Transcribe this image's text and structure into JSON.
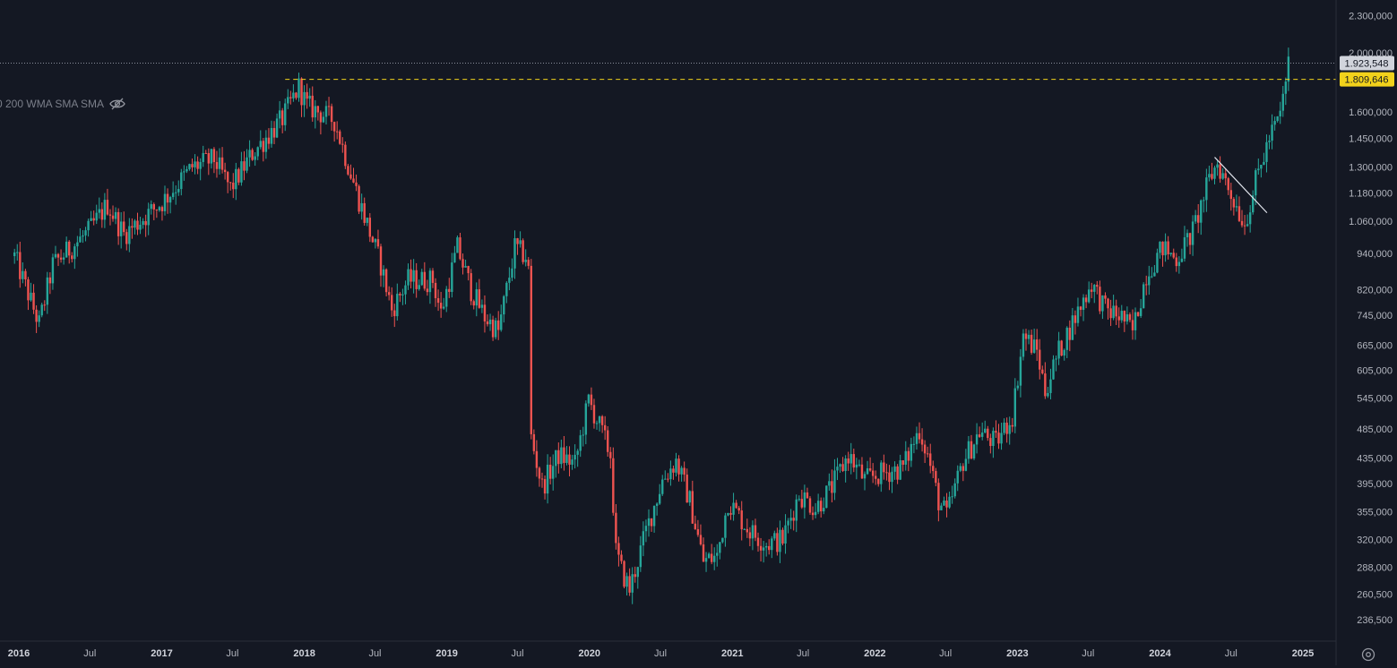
{
  "indicator_legend": {
    "text": "0 200 WMA SMA SMA"
  },
  "icons": {
    "visibility": "eye-off-icon",
    "settings": "gear-icon"
  },
  "colors": {
    "background": "#141823",
    "up": "#26a69a",
    "down": "#ef5350",
    "hline": "#f2d21b",
    "price_label_bg": "#d1d4dc",
    "axis_text": "#b2b5be"
  },
  "chart_data": {
    "type": "candlestick",
    "scale": "log",
    "y_ticks": [
      236500,
      260500,
      288000,
      320000,
      355000,
      395000,
      435000,
      485000,
      545000,
      605000,
      665000,
      745000,
      820000,
      940000,
      1060000,
      1180000,
      1300000,
      1450000,
      1600000,
      2000000,
      2300000
    ],
    "y_tick_labels": [
      "236,500",
      "260,500",
      "288,000",
      "320,000",
      "355,000",
      "395,000",
      "435,000",
      "485,000",
      "545,000",
      "605,000",
      "665,000",
      "745,000",
      "820,000",
      "940,000",
      "1.060,000",
      "1.180,000",
      "1.300,000",
      "1.450,000",
      "1.600,000",
      "2.000,000",
      "2.300,000"
    ],
    "x_ticks": [
      {
        "date": "2016-01-01",
        "label": "2016",
        "bold": true
      },
      {
        "date": "2016-07-01",
        "label": "Jul",
        "bold": false
      },
      {
        "date": "2017-01-01",
        "label": "2017",
        "bold": true
      },
      {
        "date": "2017-07-01",
        "label": "Jul",
        "bold": false
      },
      {
        "date": "2018-01-01",
        "label": "2018",
        "bold": true
      },
      {
        "date": "2018-07-01",
        "label": "Jul",
        "bold": false
      },
      {
        "date": "2019-01-01",
        "label": "2019",
        "bold": true
      },
      {
        "date": "2019-07-01",
        "label": "Jul",
        "bold": false
      },
      {
        "date": "2020-01-01",
        "label": "2020",
        "bold": true
      },
      {
        "date": "2020-07-01",
        "label": "Jul",
        "bold": false
      },
      {
        "date": "2021-01-01",
        "label": "2021",
        "bold": true
      },
      {
        "date": "2021-07-01",
        "label": "Jul",
        "bold": false
      },
      {
        "date": "2022-01-01",
        "label": "2022",
        "bold": true
      },
      {
        "date": "2022-07-01",
        "label": "Jul",
        "bold": false
      },
      {
        "date": "2023-01-01",
        "label": "2023",
        "bold": true
      },
      {
        "date": "2023-07-01",
        "label": "Jul",
        "bold": false
      },
      {
        "date": "2024-01-01",
        "label": "2024",
        "bold": true
      },
      {
        "date": "2024-07-01",
        "label": "Jul",
        "bold": false
      },
      {
        "date": "2025-01-01",
        "label": "2025",
        "bold": true
      }
    ],
    "current_price": {
      "value": 1923548,
      "label": "1.923,548"
    },
    "horizontal_line": {
      "value": 1809646,
      "label": "1.809,646",
      "from_date": "2017-11-13",
      "style": "dashed"
    },
    "trend_line": {
      "from": {
        "date": "2024-05-20",
        "value": 1350000
      },
      "to": {
        "date": "2024-10-01",
        "value": 1095000
      }
    },
    "price_path": [
      {
        "date": "2015-12-21",
        "value": 930000
      },
      {
        "date": "2016-02-22",
        "value": 720000
      },
      {
        "date": "2016-03-28",
        "value": 900000
      },
      {
        "date": "2016-06-27",
        "value": 1020000
      },
      {
        "date": "2016-08-15",
        "value": 1130000
      },
      {
        "date": "2016-09-26",
        "value": 1010000
      },
      {
        "date": "2017-01-02",
        "value": 1140000
      },
      {
        "date": "2017-03-20",
        "value": 1300000
      },
      {
        "date": "2017-05-15",
        "value": 1340000
      },
      {
        "date": "2017-06-26",
        "value": 1200000
      },
      {
        "date": "2017-08-21",
        "value": 1370000
      },
      {
        "date": "2017-11-06",
        "value": 1560000
      },
      {
        "date": "2017-12-18",
        "value": 1760000
      },
      {
        "date": "2018-01-08",
        "value": 1640000
      },
      {
        "date": "2018-03-19",
        "value": 1550000
      },
      {
        "date": "2018-05-21",
        "value": 1150000
      },
      {
        "date": "2018-07-16",
        "value": 900000
      },
      {
        "date": "2018-08-13",
        "value": 760000
      },
      {
        "date": "2018-09-24",
        "value": 850000
      },
      {
        "date": "2018-11-26",
        "value": 850000
      },
      {
        "date": "2018-12-17",
        "value": 750000
      },
      {
        "date": "2019-01-28",
        "value": 960000
      },
      {
        "date": "2019-03-04",
        "value": 820000
      },
      {
        "date": "2019-04-08",
        "value": 740000
      },
      {
        "date": "2019-05-13",
        "value": 700000
      },
      {
        "date": "2019-06-24",
        "value": 960000
      },
      {
        "date": "2019-07-22",
        "value": 930000
      },
      {
        "date": "2019-07-29",
        "value": 880000
      },
      {
        "date": "2019-08-05",
        "value": 470000
      },
      {
        "date": "2019-09-02",
        "value": 390000
      },
      {
        "date": "2019-10-14",
        "value": 440000
      },
      {
        "date": "2019-11-25",
        "value": 425000
      },
      {
        "date": "2019-12-30",
        "value": 540000
      },
      {
        "date": "2020-01-27",
        "value": 490000
      },
      {
        "date": "2020-02-24",
        "value": 440000
      },
      {
        "date": "2020-03-09",
        "value": 305000
      },
      {
        "date": "2020-03-23",
        "value": 285000
      },
      {
        "date": "2020-04-13",
        "value": 265000
      },
      {
        "date": "2020-05-25",
        "value": 330000
      },
      {
        "date": "2020-07-06",
        "value": 400000
      },
      {
        "date": "2020-08-10",
        "value": 430000
      },
      {
        "date": "2020-09-14",
        "value": 370000
      },
      {
        "date": "2020-10-19",
        "value": 295000
      },
      {
        "date": "2020-11-23",
        "value": 300000
      },
      {
        "date": "2020-12-21",
        "value": 370000
      },
      {
        "date": "2021-02-15",
        "value": 330000
      },
      {
        "date": "2021-03-29",
        "value": 315000
      },
      {
        "date": "2021-05-10",
        "value": 320000
      },
      {
        "date": "2021-06-21",
        "value": 380000
      },
      {
        "date": "2021-08-02",
        "value": 360000
      },
      {
        "date": "2021-09-13",
        "value": 390000
      },
      {
        "date": "2021-10-25",
        "value": 440000
      },
      {
        "date": "2021-12-06",
        "value": 400000
      },
      {
        "date": "2022-01-17",
        "value": 410000
      },
      {
        "date": "2022-03-14",
        "value": 420000
      },
      {
        "date": "2022-04-25",
        "value": 485000
      },
      {
        "date": "2022-05-16",
        "value": 440000
      },
      {
        "date": "2022-06-13",
        "value": 370000
      },
      {
        "date": "2022-07-04",
        "value": 350000
      },
      {
        "date": "2022-08-15",
        "value": 430000
      },
      {
        "date": "2022-09-26",
        "value": 480000
      },
      {
        "date": "2022-11-07",
        "value": 460000
      },
      {
        "date": "2022-12-19",
        "value": 510000
      },
      {
        "date": "2023-01-16",
        "value": 690000
      },
      {
        "date": "2023-02-20",
        "value": 650000
      },
      {
        "date": "2023-03-13",
        "value": 560000
      },
      {
        "date": "2023-04-17",
        "value": 650000
      },
      {
        "date": "2023-05-29",
        "value": 740000
      },
      {
        "date": "2023-07-10",
        "value": 840000
      },
      {
        "date": "2023-08-14",
        "value": 760000
      },
      {
        "date": "2023-09-25",
        "value": 740000
      },
      {
        "date": "2023-10-23",
        "value": 700000
      },
      {
        "date": "2023-11-27",
        "value": 870000
      },
      {
        "date": "2024-01-08",
        "value": 960000
      },
      {
        "date": "2024-02-12",
        "value": 920000
      },
      {
        "date": "2024-03-25",
        "value": 1020000
      },
      {
        "date": "2024-05-06",
        "value": 1240000
      },
      {
        "date": "2024-05-27",
        "value": 1320000
      },
      {
        "date": "2024-07-08",
        "value": 1150000
      },
      {
        "date": "2024-08-05",
        "value": 1050000
      },
      {
        "date": "2024-09-02",
        "value": 1230000
      },
      {
        "date": "2024-10-07",
        "value": 1450000
      },
      {
        "date": "2024-11-04",
        "value": 1580000
      },
      {
        "date": "2024-11-25",
        "value": 1923548
      }
    ]
  }
}
